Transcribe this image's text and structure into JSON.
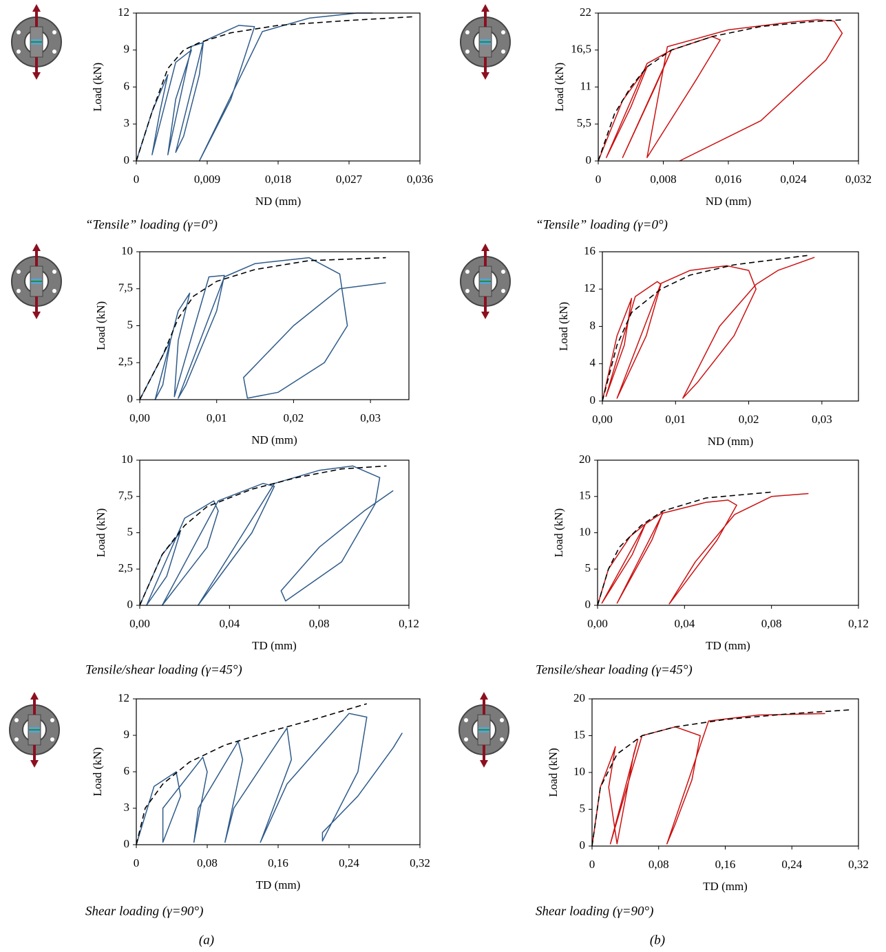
{
  "chart_data": [
    {
      "type": "line",
      "xlabel": "ND (mm)",
      "ylabel": "Load (kN)",
      "xlim": [
        0,
        0.036
      ],
      "xticks": [
        0,
        {
          "value": 0.009,
          "label": "0,009"
        },
        {
          "value": 0.018,
          "label": "0,018"
        },
        {
          "value": 0.027,
          "label": "0,027"
        },
        {
          "value": 0.036,
          "label": "0,036"
        }
      ],
      "ylim": [
        0,
        12
      ],
      "yticks": [
        0,
        3,
        6,
        9,
        12
      ],
      "series": [
        {
          "color": "#2e5a8a",
          "x": [
            0,
            0.002,
            0.004,
            0.003,
            0.002,
            0.005,
            0.007,
            0.005,
            0.004,
            0.007,
            0.0085,
            0.008,
            0.006,
            0.005,
            0.0085,
            0.013,
            0.015,
            0.012,
            0.008,
            0.016,
            0.022,
            0.028,
            0.03
          ],
          "values": [
            0,
            4,
            7,
            4,
            0.5,
            8,
            9,
            5,
            0.5,
            9.3,
            9.6,
            7,
            2,
            0.7,
            9.7,
            11,
            10.9,
            5,
            0,
            10.5,
            11.6,
            12,
            12
          ]
        },
        {
          "color": "#000000",
          "line_style": "dashed",
          "x": [
            0,
            0.002,
            0.004,
            0.006,
            0.008,
            0.012,
            0.018,
            0.027,
            0.035
          ],
          "values": [
            0,
            4,
            7.5,
            9,
            9.6,
            10.4,
            11,
            11.4,
            11.7
          ]
        }
      ]
    },
    {
      "type": "line",
      "xlabel": "ND (mm)",
      "ylabel": "Load (kN)",
      "xlim": [
        0,
        0.032
      ],
      "xticks": [
        0,
        {
          "value": 0.008,
          "label": "0,008"
        },
        {
          "value": 0.016,
          "label": "0,016"
        },
        {
          "value": 0.024,
          "label": "0,024"
        },
        {
          "value": 0.032,
          "label": "0,032"
        }
      ],
      "ylim": [
        0,
        22
      ],
      "yticks": [
        0,
        {
          "value": 5.5,
          "label": "5,5"
        },
        11,
        {
          "value": 16.5,
          "label": "16,5"
        },
        22
      ],
      "series": [
        {
          "color": "#cc1010",
          "x": [
            0,
            0.003,
            0.006,
            0.004,
            0.001,
            0.006,
            0.009,
            0.007,
            0.003,
            0.009,
            0.014,
            0.015,
            0.012,
            0.006,
            0.0085,
            0.016,
            0.024,
            0.027,
            0.029,
            0.03,
            0.028,
            0.02,
            0.01
          ],
          "values": [
            0,
            9,
            14,
            8,
            0.5,
            14.5,
            16.5,
            11,
            0.5,
            16.5,
            18.5,
            18,
            12,
            0.5,
            17,
            19.5,
            20.7,
            21,
            20.8,
            19,
            15,
            6,
            0
          ]
        },
        {
          "color": "#000000",
          "line_style": "dashed",
          "x": [
            0,
            0.002,
            0.004,
            0.006,
            0.009,
            0.014,
            0.02,
            0.026,
            0.03
          ],
          "values": [
            0,
            7,
            11,
            14,
            16.5,
            18.5,
            20,
            20.7,
            21
          ]
        }
      ]
    },
    {
      "type": "line",
      "xlabel": "ND (mm)",
      "ylabel": "Load (kN)",
      "xlim": [
        0,
        0.035
      ],
      "xticks": [
        {
          "value": 0,
          "label": "0,00"
        },
        {
          "value": 0.01,
          "label": "0,01"
        },
        {
          "value": 0.02,
          "label": "0,02"
        },
        {
          "value": 0.03,
          "label": "0,03"
        }
      ],
      "ylim": [
        0,
        10
      ],
      "yticks": [
        0,
        {
          "value": 2.5,
          "label": "2,5"
        },
        5,
        {
          "value": 7.5,
          "label": "7,5"
        },
        10
      ],
      "series": [
        {
          "color": "#2e5a8a",
          "x": [
            0,
            0.002,
            0.004,
            0.003,
            0.002,
            0.005,
            0.0065,
            0.005,
            0.0045,
            0.009,
            0.011,
            0.01,
            0.006,
            0.005,
            0.011,
            0.015,
            0.022,
            0.026,
            0.027,
            0.024,
            0.018,
            0.014,
            0.0135,
            0.02,
            0.026,
            0.032
          ],
          "values": [
            0,
            2,
            4,
            1,
            0,
            6,
            7.2,
            4,
            0.2,
            8.3,
            8.4,
            6,
            1,
            0.1,
            8.3,
            9.2,
            9.6,
            8.5,
            5,
            2.5,
            0.5,
            0.1,
            1.5,
            5,
            7.5,
            7.9
          ]
        },
        {
          "color": "#000000",
          "line_style": "dashed",
          "x": [
            0,
            0.003,
            0.005,
            0.007,
            0.01,
            0.015,
            0.022,
            0.032
          ],
          "values": [
            0,
            3,
            5.5,
            7,
            8,
            8.8,
            9.4,
            9.6
          ]
        }
      ]
    },
    {
      "type": "line",
      "xlabel": "ND (mm)",
      "ylabel": "Load (kN)",
      "xlim": [
        0,
        0.035
      ],
      "xticks": [
        {
          "value": 0,
          "label": "0,00"
        },
        {
          "value": 0.01,
          "label": "0,01"
        },
        {
          "value": 0.02,
          "label": "0,02"
        },
        {
          "value": 0.03,
          "label": "0,03"
        }
      ],
      "ylim": [
        0,
        16
      ],
      "yticks": [
        0,
        4,
        8,
        12,
        16
      ],
      "series": [
        {
          "color": "#cc1010",
          "x": [
            0,
            0.002,
            0.004,
            0.003,
            0.0005,
            0.0045,
            0.0075,
            0.008,
            0.006,
            0.002,
            0.008,
            0.012,
            0.017,
            0.02,
            0.021,
            0.018,
            0.013,
            0.011,
            0.016,
            0.021,
            0.024,
            0.029
          ],
          "values": [
            0,
            7,
            11,
            6,
            0.5,
            11.2,
            12.8,
            12.5,
            7,
            0.3,
            12.6,
            14,
            14.5,
            14,
            12,
            7,
            2,
            0.3,
            8,
            12.5,
            14,
            15.4
          ]
        },
        {
          "color": "#000000",
          "line_style": "dashed",
          "x": [
            0,
            0.002,
            0.004,
            0.008,
            0.012,
            0.018,
            0.028
          ],
          "values": [
            0,
            6,
            9.5,
            12,
            13.5,
            14.6,
            15.6
          ]
        }
      ]
    },
    {
      "type": "line",
      "xlabel": "TD (mm)",
      "ylabel": "Load (kN)",
      "xlim": [
        0,
        0.12
      ],
      "xticks": [
        {
          "value": 0,
          "label": "0,00"
        },
        {
          "value": 0.04,
          "label": "0,04"
        },
        {
          "value": 0.08,
          "label": "0,08"
        },
        {
          "value": 0.12,
          "label": "0,12"
        }
      ],
      "ylim": [
        0,
        10
      ],
      "yticks": [
        0,
        {
          "value": 2.5,
          "label": "2,5"
        },
        5,
        {
          "value": 7.5,
          "label": "7,5"
        },
        10
      ],
      "series": [
        {
          "color": "#2e5a8a",
          "x": [
            0,
            0.01,
            0.018,
            0.012,
            0.003,
            0.02,
            0.033,
            0.035,
            0.03,
            0.01,
            0.035,
            0.055,
            0.06,
            0.05,
            0.026,
            0.06,
            0.08,
            0.095,
            0.107,
            0.105,
            0.09,
            0.065,
            0.063,
            0.08,
            0.1,
            0.113
          ],
          "values": [
            0,
            3.5,
            5,
            2,
            0,
            6,
            7.2,
            6.5,
            4,
            0,
            7.2,
            8.4,
            8.2,
            5,
            0,
            8.4,
            9.3,
            9.6,
            8.8,
            7,
            3,
            0.3,
            1,
            4,
            6.5,
            7.9
          ]
        },
        {
          "color": "#000000",
          "line_style": "dashed",
          "x": [
            0,
            0.01,
            0.02,
            0.03,
            0.05,
            0.07,
            0.09,
            0.11
          ],
          "values": [
            0,
            3.5,
            5.5,
            6.8,
            8,
            8.8,
            9.4,
            9.6
          ]
        }
      ]
    },
    {
      "type": "line",
      "xlabel": "TD (mm)",
      "ylabel": "Load (kN)",
      "xlim": [
        0,
        0.12
      ],
      "xticks": [
        {
          "value": 0,
          "label": "0,00"
        },
        {
          "value": 0.04,
          "label": "0,04"
        },
        {
          "value": 0.08,
          "label": "0,08"
        },
        {
          "value": 0.12,
          "label": "0,12"
        }
      ],
      "ylim": [
        0,
        20
      ],
      "yticks": [
        0,
        5,
        10,
        15,
        20
      ],
      "series": [
        {
          "color": "#cc1010",
          "x": [
            0,
            0.005,
            0.015,
            0.022,
            0.016,
            0.002,
            0.022,
            0.03,
            0.025,
            0.009,
            0.03,
            0.05,
            0.06,
            0.064,
            0.055,
            0.04,
            0.033,
            0.045,
            0.063,
            0.08,
            0.097
          ],
          "values": [
            0,
            5,
            9.5,
            11.2,
            7,
            0.3,
            11.2,
            12.8,
            9,
            0.3,
            12.7,
            14.2,
            14.5,
            13.8,
            9,
            3,
            0.2,
            6,
            12.5,
            15,
            15.4
          ]
        },
        {
          "color": "#000000",
          "line_style": "dashed",
          "x": [
            0,
            0.005,
            0.01,
            0.02,
            0.03,
            0.05,
            0.08
          ],
          "values": [
            0,
            5,
            8,
            11,
            13,
            14.8,
            15.6
          ]
        }
      ]
    },
    {
      "type": "line",
      "xlabel": "TD (mm)",
      "ylabel": "Load (kN)",
      "xlim": [
        0,
        0.32
      ],
      "xticks": [
        0,
        {
          "value": 0.08,
          "label": "0,08"
        },
        {
          "value": 0.16,
          "label": "0,16"
        },
        {
          "value": 0.24,
          "label": "0,24"
        },
        {
          "value": 0.32,
          "label": "0,32"
        }
      ],
      "ylim": [
        0,
        12
      ],
      "yticks": [
        0,
        3,
        6,
        9,
        12
      ],
      "series": [
        {
          "color": "#2e5a8a",
          "x": [
            0,
            0.02,
            0.045,
            0.05,
            0.03,
            0.03,
            0.075,
            0.08,
            0.065,
            0.07,
            0.115,
            0.12,
            0.1,
            0.11,
            0.17,
            0.175,
            0.14,
            0.17,
            0.24,
            0.26,
            0.25,
            0.21,
            0.21,
            0.25,
            0.29,
            0.3
          ],
          "values": [
            0,
            4.8,
            6,
            4,
            0.2,
            3,
            7.2,
            6,
            0.2,
            3,
            8.5,
            7,
            0.2,
            3,
            9.6,
            7,
            0.2,
            5,
            10.8,
            10.5,
            6,
            0.3,
            1,
            4,
            8,
            9.2
          ]
        },
        {
          "color": "#000000",
          "line_style": "dashed",
          "x": [
            0,
            0.01,
            0.03,
            0.06,
            0.1,
            0.15,
            0.2,
            0.26
          ],
          "values": [
            0,
            3,
            5,
            6.8,
            8.2,
            9.3,
            10.3,
            11.6
          ]
        }
      ]
    },
    {
      "type": "line",
      "xlabel": "TD (mm)",
      "ylabel": "Load (kN)",
      "xlim": [
        0,
        0.32
      ],
      "xticks": [
        0,
        {
          "value": 0.08,
          "label": "0,08"
        },
        {
          "value": 0.16,
          "label": "0,16"
        },
        {
          "value": 0.24,
          "label": "0,24"
        },
        {
          "value": 0.32,
          "label": "0,32"
        }
      ],
      "ylim": [
        0,
        20
      ],
      "yticks": [
        0,
        5,
        10,
        15,
        20
      ],
      "series": [
        {
          "color": "#cc1010",
          "x": [
            0,
            0.01,
            0.025,
            0.028,
            0.02,
            0.03,
            0.05,
            0.055,
            0.04,
            0.022,
            0.06,
            0.1,
            0.13,
            0.12,
            0.1,
            0.09,
            0.11,
            0.14,
            0.2,
            0.28
          ],
          "values": [
            0,
            8,
            12.5,
            13.5,
            8,
            0.3,
            12.5,
            14.5,
            8,
            0.3,
            15,
            16.2,
            15,
            9,
            3,
            0.3,
            7,
            17,
            17.8,
            18
          ]
        },
        {
          "color": "#000000",
          "line_style": "dashed",
          "x": [
            0,
            0.01,
            0.03,
            0.06,
            0.1,
            0.16,
            0.24,
            0.31
          ],
          "values": [
            0,
            8,
            12.5,
            15,
            16.2,
            17.2,
            18,
            18.5
          ]
        }
      ]
    }
  ],
  "captions": [
    "“Tensile” loading (γ=0°)",
    "“Tensile” loading (γ=0°)",
    "Tensile/shear loading (γ=45°)",
    "Tensile/shear loading (γ=45°)",
    "Shear loading (γ=90°)",
    "Shear loading (γ=90°)"
  ],
  "panel_labels": [
    "(a)",
    "(b)"
  ]
}
